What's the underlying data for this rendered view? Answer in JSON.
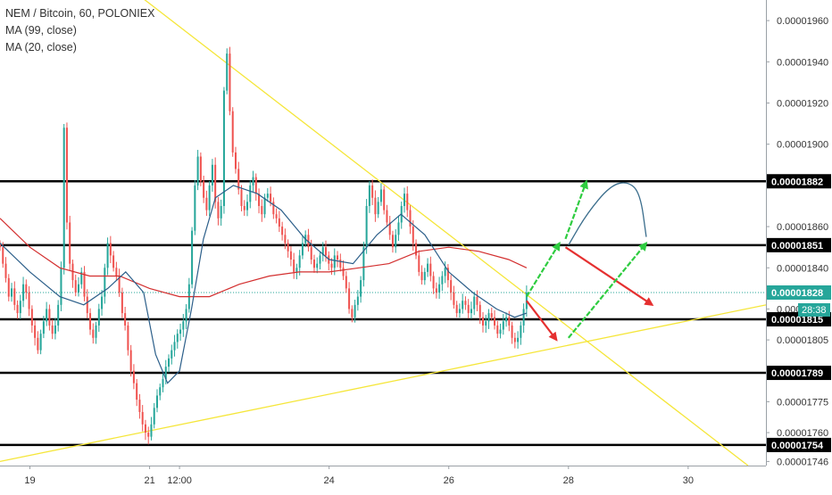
{
  "chart_data": {
    "type": "candlestick",
    "title": "NEM / Bitcoin, 60, POLONIEX",
    "indicators": [
      {
        "label": "MA (99, close)",
        "color": "#d32f2f"
      },
      {
        "label": "MA (20, close)",
        "color": "#2c5f8a"
      }
    ],
    "ylim": [
      1.744e-05,
      1.97e-05
    ],
    "y_ticks": [
      {
        "value": 1.746e-05,
        "label": "0.00001746"
      },
      {
        "value": 1.76e-05,
        "label": "0.00001760"
      },
      {
        "value": 1.775e-05,
        "label": "0.00001775"
      },
      {
        "value": 1.805e-05,
        "label": "0.00001805"
      },
      {
        "value": 1.82e-05,
        "label": "0.000018"
      },
      {
        "value": 1.84e-05,
        "label": "0.00001840"
      },
      {
        "value": 1.86e-05,
        "label": "0.00001860"
      },
      {
        "value": 1.9e-05,
        "label": "0.00001900"
      },
      {
        "value": 1.92e-05,
        "label": "0.00001920"
      },
      {
        "value": 1.94e-05,
        "label": "0.00001940"
      },
      {
        "value": 1.96e-05,
        "label": "0.00001960"
      }
    ],
    "x_range_days": [
      18.5,
      31.3
    ],
    "x_ticks": [
      {
        "day": 19,
        "label": "19"
      },
      {
        "day": 21,
        "label": "21"
      },
      {
        "day": 21.5,
        "label": "12:00"
      },
      {
        "day": 24,
        "label": "24"
      },
      {
        "day": 26,
        "label": "26"
      },
      {
        "day": 28,
        "label": "28"
      },
      {
        "day": 30,
        "label": "30"
      }
    ],
    "horizontal_levels": [
      {
        "value": 1.882e-05,
        "label": "0.00001882"
      },
      {
        "value": 1.851e-05,
        "label": "0.00001851"
      },
      {
        "value": 1.815e-05,
        "label": "0.00001815"
      },
      {
        "value": 1.789e-05,
        "label": "0.00001789"
      },
      {
        "value": 1.754e-05,
        "label": "0.00001754"
      }
    ],
    "last_price": {
      "value": 1.828e-05,
      "label": "0.00001828"
    },
    "countdown": "28:38",
    "candle_data_note_free": true,
    "candles_close": [
      1.85e-05,
      1.842e-05,
      1.835e-05,
      1.826e-05,
      1.83e-05,
      1.822e-05,
      1.818e-05,
      1.824e-05,
      1.832e-05,
      1.828e-05,
      1.82e-05,
      1.812e-05,
      1.806e-05,
      1.8e-05,
      1.808e-05,
      1.814e-05,
      1.82e-05,
      1.812e-05,
      1.808e-05,
      1.812e-05,
      1.822e-05,
      1.84e-05,
      1.908e-05,
      1.862e-05,
      1.842e-05,
      1.834e-05,
      1.828e-05,
      1.832e-05,
      1.838e-05,
      1.826e-05,
      1.818e-05,
      1.81e-05,
      1.806e-05,
      1.812e-05,
      1.82e-05,
      1.826e-05,
      1.84e-05,
      1.852e-05,
      1.846e-05,
      1.84e-05,
      1.836e-05,
      1.828e-05,
      1.818e-05,
      1.812e-05,
      1.8e-05,
      1.79e-05,
      1.784e-05,
      1.776e-05,
      1.77e-05,
      1.764e-05,
      1.76e-05,
      1.758e-05,
      1.764e-05,
      1.772e-05,
      1.778e-05,
      1.782e-05,
      1.786e-05,
      1.792e-05,
      1.796e-05,
      1.8e-05,
      1.804e-05,
      1.808e-05,
      1.81e-05,
      1.814e-05,
      1.82e-05,
      1.832e-05,
      1.858e-05,
      1.88e-05,
      1.894e-05,
      1.882e-05,
      1.874e-05,
      1.868e-05,
      1.88e-05,
      1.89e-05,
      1.872e-05,
      1.864e-05,
      1.87e-05,
      1.926e-05,
      1.944e-05,
      1.916e-05,
      1.896e-05,
      1.888e-05,
      1.878e-05,
      1.87e-05,
      1.868e-05,
      1.872e-05,
      1.88e-05,
      1.884e-05,
      1.876e-05,
      1.87e-05,
      1.866e-05,
      1.874e-05,
      1.876e-05,
      1.872e-05,
      1.866e-05,
      1.864e-05,
      1.86e-05,
      1.856e-05,
      1.852e-05,
      1.848e-05,
      1.844e-05,
      1.838e-05,
      1.84e-05,
      1.846e-05,
      1.852e-05,
      1.856e-05,
      1.85e-05,
      1.844e-05,
      1.84e-05,
      1.842e-05,
      1.846e-05,
      1.85e-05,
      1.846e-05,
      1.842e-05,
      1.84e-05,
      1.846e-05,
      1.844e-05,
      1.84e-05,
      1.836e-05,
      1.83e-05,
      1.82e-05,
      1.816e-05,
      1.822e-05,
      1.826e-05,
      1.834e-05,
      1.85e-05,
      1.87e-05,
      1.88e-05,
      1.874e-05,
      1.866e-05,
      1.872e-05,
      1.878e-05,
      1.868e-05,
      1.862e-05,
      1.856e-05,
      1.85e-05,
      1.856e-05,
      1.862e-05,
      1.87e-05,
      1.876e-05,
      1.868e-05,
      1.86e-05,
      1.852e-05,
      1.846e-05,
      1.838e-05,
      1.834e-05,
      1.838e-05,
      1.842e-05,
      1.836e-05,
      1.83e-05,
      1.828e-05,
      1.832e-05,
      1.836e-05,
      1.84e-05,
      1.834e-05,
      1.828e-05,
      1.822e-05,
      1.818e-05,
      1.82e-05,
      1.824e-05,
      1.822e-05,
      1.818e-05,
      1.82e-05,
      1.826e-05,
      1.822e-05,
      1.816e-05,
      1.812e-05,
      1.814e-05,
      1.818e-05,
      1.816e-05,
      1.812e-05,
      1.808e-05,
      1.81e-05,
      1.814e-05,
      1.816e-05,
      1.812e-05,
      1.806e-05,
      1.804e-05,
      1.806e-05,
      1.812e-05,
      1.82e-05,
      1.828e-05
    ],
    "ma20": [
      [
        18.5,
        1.852e-05
      ],
      [
        19.0,
        1.838e-05
      ],
      [
        19.5,
        1.826e-05
      ],
      [
        19.9,
        1.822e-05
      ],
      [
        20.3,
        1.83e-05
      ],
      [
        20.6,
        1.838e-05
      ],
      [
        20.9,
        1.828e-05
      ],
      [
        21.1,
        1.798e-05
      ],
      [
        21.3,
        1.784e-05
      ],
      [
        21.5,
        1.79e-05
      ],
      [
        21.7,
        1.82e-05
      ],
      [
        21.9,
        1.854e-05
      ],
      [
        22.1,
        1.874e-05
      ],
      [
        22.4,
        1.88e-05
      ],
      [
        22.8,
        1.876e-05
      ],
      [
        23.2,
        1.868e-05
      ],
      [
        23.6,
        1.854e-05
      ],
      [
        24.0,
        1.844e-05
      ],
      [
        24.4,
        1.842e-05
      ],
      [
        24.8,
        1.856e-05
      ],
      [
        25.2,
        1.866e-05
      ],
      [
        25.6,
        1.856e-05
      ],
      [
        26.0,
        1.838e-05
      ],
      [
        26.4,
        1.828e-05
      ],
      [
        26.8,
        1.82e-05
      ],
      [
        27.1,
        1.816e-05
      ],
      [
        27.3,
        1.818e-05
      ]
    ],
    "ma99": [
      [
        18.5,
        1.864e-05
      ],
      [
        19.0,
        1.85e-05
      ],
      [
        19.5,
        1.84e-05
      ],
      [
        20.0,
        1.836e-05
      ],
      [
        20.5,
        1.836e-05
      ],
      [
        21.0,
        1.83e-05
      ],
      [
        21.5,
        1.826e-05
      ],
      [
        22.0,
        1.826e-05
      ],
      [
        22.5,
        1.832e-05
      ],
      [
        23.0,
        1.836e-05
      ],
      [
        23.5,
        1.838e-05
      ],
      [
        24.0,
        1.838e-05
      ],
      [
        24.5,
        1.84e-05
      ],
      [
        25.0,
        1.842e-05
      ],
      [
        25.5,
        1.848e-05
      ],
      [
        26.0,
        1.85e-05
      ],
      [
        26.5,
        1.848e-05
      ],
      [
        27.0,
        1.844e-05
      ],
      [
        27.3,
        1.84e-05
      ]
    ],
    "trendlines": [
      {
        "color": "#f5e63a",
        "from": [
          20.7,
          1.975e-05
        ],
        "to": [
          31.0,
          1.744e-05
        ]
      },
      {
        "color": "#f5e63a",
        "from": [
          18.5,
          1.746e-05
        ],
        "to": [
          31.3,
          1.822e-05
        ]
      }
    ],
    "forecast_arrows": [
      {
        "color": "#2ecc40",
        "from": [
          27.3,
          1.826e-05
        ],
        "to": [
          27.85,
          1.852e-05
        ]
      },
      {
        "color": "#2ecc40",
        "from": [
          27.95,
          1.854e-05
        ],
        "to": [
          28.3,
          1.882e-05
        ]
      },
      {
        "color": "#e53030",
        "from": [
          27.3,
          1.824e-05
        ],
        "to": [
          27.8,
          1.805e-05
        ]
      },
      {
        "color": "#e53030",
        "from": [
          27.95,
          1.85e-05
        ],
        "to": [
          29.4,
          1.822e-05
        ]
      },
      {
        "color": "#2ecc40",
        "from": [
          28.0,
          1.806e-05
        ],
        "to": [
          29.3,
          1.852e-05
        ]
      }
    ],
    "forecast_curve": {
      "color": "#3a6d8c",
      "points": [
        [
          28.0,
          1.851e-05
        ],
        [
          28.3,
          1.866e-05
        ],
        [
          28.7,
          1.88e-05
        ],
        [
          29.0,
          1.882e-05
        ],
        [
          29.2,
          1.876e-05
        ],
        [
          29.3,
          1.855e-05
        ]
      ]
    }
  }
}
